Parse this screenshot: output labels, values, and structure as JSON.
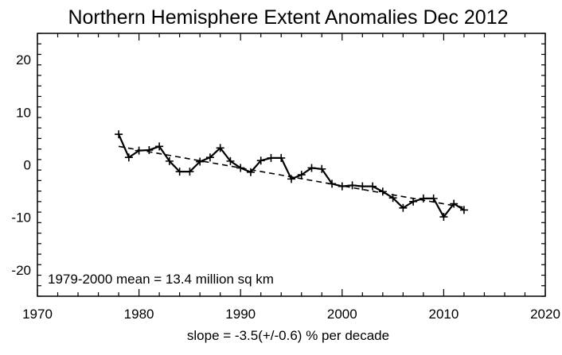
{
  "chart_data": {
    "type": "line",
    "title": "Northern Hemisphere Extent Anomalies Dec 2012",
    "xlabel": "slope =  -3.5(+/-0.6) % per decade",
    "ylabel": "",
    "xlim": [
      1970,
      2020
    ],
    "ylim": [
      -25,
      25
    ],
    "xticks": [
      1970,
      1980,
      1990,
      2000,
      2010,
      2020
    ],
    "yticks": [
      -20,
      -10,
      0,
      10,
      20
    ],
    "grid": false,
    "annotation": "1979-2000 mean =  13.4 million sq km",
    "series": [
      {
        "style": "solid-with-plus-markers",
        "color": "#000000",
        "x": [
          1978,
          1979,
          1980,
          1981,
          1982,
          1983,
          1984,
          1985,
          1986,
          1987,
          1988,
          1989,
          1990,
          1991,
          1992,
          1993,
          1994,
          1995,
          1996,
          1997,
          1998,
          1999,
          2000,
          2001,
          2002,
          2003,
          2004,
          2005,
          2006,
          2007,
          2008,
          2009,
          2010,
          2011,
          2012
        ],
        "values": [
          5.8,
          1.4,
          2.7,
          2.8,
          3.5,
          0.7,
          -1.3,
          -1.3,
          0.6,
          1.4,
          3.2,
          0.7,
          -0.6,
          -1.4,
          0.8,
          1.3,
          1.3,
          -2.7,
          -1.9,
          -0.6,
          -0.8,
          -3.6,
          -4.1,
          -3.9,
          -4.1,
          -4.1,
          -5.1,
          -6.3,
          -8.2,
          -7.0,
          -6.4,
          -6.4,
          -9.9,
          -7.4,
          -8.6
        ]
      },
      {
        "style": "dashed-trend",
        "color": "#000000",
        "x": [
          1978,
          2012
        ],
        "values": [
          3.5,
          -8.1
        ]
      }
    ]
  }
}
